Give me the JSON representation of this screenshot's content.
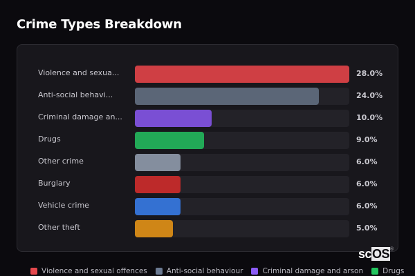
{
  "title": "Crime Types Breakdown",
  "watermark": {
    "sc": "sc",
    "os": "OS",
    "reg": "®"
  },
  "chart_data": {
    "type": "bar",
    "orientation": "horizontal",
    "title": "Crime Types Breakdown",
    "categories": [
      "Violence and sexual offences",
      "Anti-social behaviour",
      "Criminal damage and arson",
      "Drugs",
      "Other crime",
      "Burglary",
      "Vehicle crime",
      "Other theft"
    ],
    "values": [
      28.0,
      24.0,
      10.0,
      9.0,
      6.0,
      6.0,
      6.0,
      5.0
    ],
    "unit": "%",
    "xlim": [
      0,
      28
    ]
  },
  "rows": [
    {
      "label": "Violence and sexua...",
      "pct": "28.0%",
      "value": 28.0,
      "color": "#cf3f44"
    },
    {
      "label": "Anti-social behavi...",
      "pct": "24.0%",
      "value": 24.0,
      "color": "#5b6677"
    },
    {
      "label": "Criminal damage an...",
      "pct": "10.0%",
      "value": 10.0,
      "color": "#7a4fd4"
    },
    {
      "label": "Drugs",
      "pct": "9.0%",
      "value": 9.0,
      "color": "#22a957"
    },
    {
      "label": "Other crime",
      "pct": "6.0%",
      "value": 6.0,
      "color": "#848e9e"
    },
    {
      "label": "Burglary",
      "pct": "6.0%",
      "value": 6.0,
      "color": "#bd2a2a"
    },
    {
      "label": "Vehicle crime",
      "pct": "6.0%",
      "value": 6.0,
      "color": "#3471d2"
    },
    {
      "label": "Other theft",
      "pct": "5.0%",
      "value": 5.0,
      "color": "#cf8617"
    }
  ],
  "legend": [
    {
      "label": "Violence and sexual offences",
      "color": "#e5484d"
    },
    {
      "label": "Anti-social behaviour",
      "color": "#6b7a92"
    },
    {
      "label": "Criminal damage and arson",
      "color": "#8b5cf6"
    },
    {
      "label": "Drugs",
      "color": "#22c55e"
    }
  ]
}
